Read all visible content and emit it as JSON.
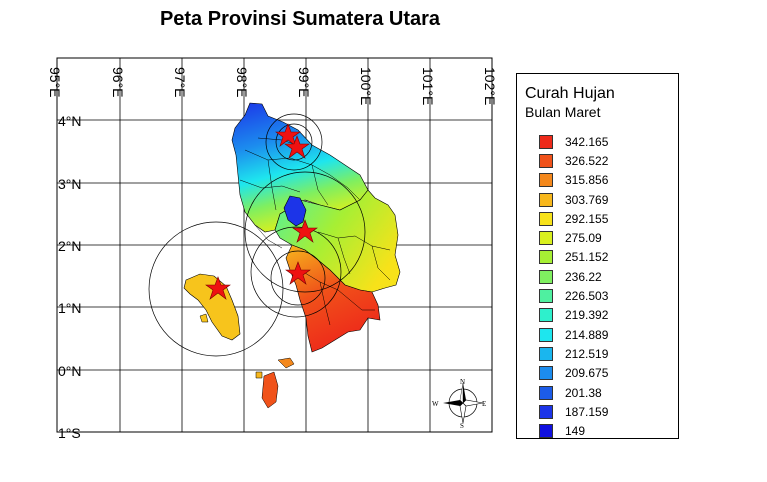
{
  "title": "Peta Provinsi Sumatera Utara",
  "axes": {
    "longitude_labels": [
      "95°E",
      "96°E",
      "97°E",
      "98°E",
      "99°E",
      "100°E",
      "101°E",
      "102°E"
    ],
    "latitude_labels": [
      "4°N",
      "3°N",
      "2°N",
      "1°N",
      "0°N",
      "1°S"
    ]
  },
  "legend": {
    "title": "Curah Hujan",
    "subtitle": "Bulan Maret",
    "items": [
      {
        "label": "342.165",
        "color": "#ee2a1a"
      },
      {
        "label": "326.522",
        "color": "#f0521a"
      },
      {
        "label": "315.856",
        "color": "#f4881c"
      },
      {
        "label": "303.769",
        "color": "#f7b71c"
      },
      {
        "label": "292.155",
        "color": "#f7e21a"
      },
      {
        "label": "275.09",
        "color": "#d9f01e"
      },
      {
        "label": "251.152",
        "color": "#a6ef34"
      },
      {
        "label": "236.22",
        "color": "#7fef60"
      },
      {
        "label": "226.503",
        "color": "#4ff0a0"
      },
      {
        "label": "219.392",
        "color": "#2ef0cc"
      },
      {
        "label": "214.889",
        "color": "#1ee6ee"
      },
      {
        "label": "212.519",
        "color": "#1ab6ee"
      },
      {
        "label": "209.675",
        "color": "#1c8cee"
      },
      {
        "label": "201.38",
        "color": "#1c5ce8"
      },
      {
        "label": "187.159",
        "color": "#1c34e8"
      },
      {
        "label": "149",
        "color": "#1010e0"
      }
    ]
  },
  "compass": {
    "n": "N",
    "s": "S",
    "e": "E",
    "w": "W"
  }
}
